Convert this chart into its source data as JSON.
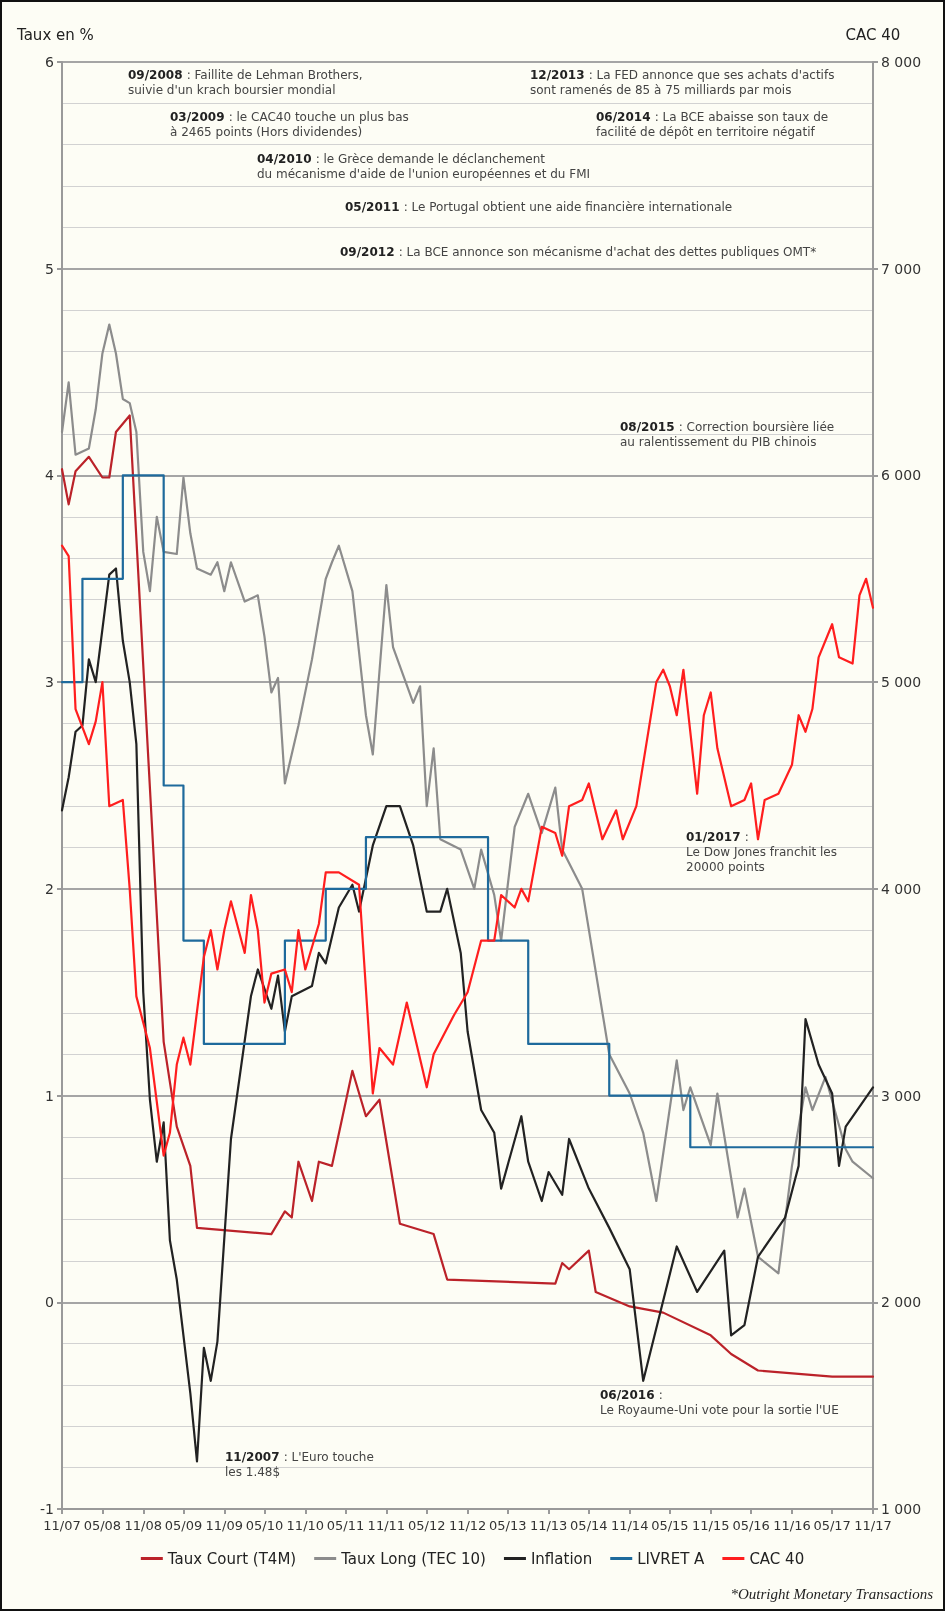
{
  "chart_data": {
    "type": "line",
    "ylabel": "Taux en %",
    "y2label": "CAC 40",
    "legend": "bottom",
    "grid": "y",
    "marker": "none",
    "xlim": [
      "2007-11",
      "2017-11"
    ],
    "xticks": [
      {
        "value": "2007-11",
        "label": "11/07"
      },
      {
        "value": "2008-05",
        "label": "05/08"
      },
      {
        "value": "2008-11",
        "label": "11/08"
      },
      {
        "value": "2009-05",
        "label": "05/09"
      },
      {
        "value": "2009-11",
        "label": "11/09"
      },
      {
        "value": "2010-05",
        "label": "05/10"
      },
      {
        "value": "2010-11",
        "label": "11/10"
      },
      {
        "value": "2011-05",
        "label": "05/11"
      },
      {
        "value": "2011-11",
        "label": "11/11"
      },
      {
        "value": "2012-05",
        "label": "05/12"
      },
      {
        "value": "2012-11",
        "label": "11/12"
      },
      {
        "value": "2013-05",
        "label": "05/13"
      },
      {
        "value": "2013-11",
        "label": "11/13"
      },
      {
        "value": "2014-05",
        "label": "05/14"
      },
      {
        "value": "2014-11",
        "label": "11/14"
      },
      {
        "value": "2015-05",
        "label": "05/15"
      },
      {
        "value": "2015-11",
        "label": "11/15"
      },
      {
        "value": "2016-05",
        "label": "05/16"
      },
      {
        "value": "2016-11",
        "label": "11/16"
      },
      {
        "value": "2017-05",
        "label": "05/17"
      },
      {
        "value": "2017-11",
        "label": "11/17"
      }
    ],
    "ylim": [
      -1,
      6
    ],
    "yticks": [
      -1,
      0,
      1,
      2,
      3,
      4,
      5,
      6
    ],
    "y2lim": [
      1000,
      8000
    ],
    "y2ticks": [
      {
        "value": 1000,
        "label": "1 000"
      },
      {
        "value": 2000,
        "label": "2 000"
      },
      {
        "value": 3000,
        "label": "3 000"
      },
      {
        "value": 4000,
        "label": "4 000"
      },
      {
        "value": 5000,
        "label": "5 000"
      },
      {
        "value": 6000,
        "label": "6 000"
      },
      {
        "value": 7000,
        "label": "7 000"
      },
      {
        "value": 8000,
        "label": "8 000"
      }
    ],
    "series": [
      {
        "name": "Taux Court (T4M)",
        "color": "#bb2229",
        "x": [
          "2007-11",
          "2007-12",
          "2008-01",
          "2008-03",
          "2008-05",
          "2008-06",
          "2008-07",
          "2008-09",
          "2009-02",
          "2009-04",
          "2009-06",
          "2009-07",
          "2010-06",
          "2010-08",
          "2010-09",
          "2010-10",
          "2010-12",
          "2011-01",
          "2011-03",
          "2011-06",
          "2011-08",
          "2011-10",
          "2012-01",
          "2012-06",
          "2012-08",
          "2013-12",
          "2014-01",
          "2014-02",
          "2014-05",
          "2014-06",
          "2014-11",
          "2015-04",
          "2015-11",
          "2016-02",
          "2016-06",
          "2017-05",
          "2017-11"
        ],
        "values": [
          4.03,
          3.86,
          4.02,
          4.09,
          3.99,
          3.99,
          4.21,
          4.29,
          1.26,
          0.85,
          0.66,
          0.36,
          0.33,
          0.44,
          0.41,
          0.68,
          0.49,
          0.68,
          0.66,
          1.12,
          0.9,
          0.98,
          0.38,
          0.33,
          0.11,
          0.09,
          0.19,
          0.16,
          0.25,
          0.05,
          -0.02,
          -0.05,
          -0.16,
          -0.25,
          -0.33,
          -0.36,
          -0.36
        ]
      },
      {
        "name": "Taux Long (TEC 10)",
        "color": "#8c8c8c",
        "x": [
          "2007-11",
          "2007-12",
          "2008-01",
          "2008-03",
          "2008-04",
          "2008-05",
          "2008-06",
          "2008-07",
          "2008-08",
          "2008-09",
          "2008-10",
          "2008-11",
          "2008-12",
          "2009-01",
          "2009-02",
          "2009-04",
          "2009-05",
          "2009-06",
          "2009-07",
          "2009-09",
          "2009-10",
          "2009-11",
          "2009-12",
          "2010-02",
          "2010-04",
          "2010-05",
          "2010-06",
          "2010-07",
          "2010-08",
          "2010-10",
          "2010-12",
          "2011-02",
          "2011-03",
          "2011-04",
          "2011-06",
          "2011-08",
          "2011-09",
          "2011-11",
          "2011-12",
          "2012-03",
          "2012-04",
          "2012-05",
          "2012-06",
          "2012-07",
          "2012-10",
          "2012-12",
          "2013-01",
          "2013-03",
          "2013-04",
          "2013-06",
          "2013-08",
          "2013-10",
          "2013-12",
          "2014-01",
          "2014-04",
          "2014-08",
          "2014-11",
          "2015-01",
          "2015-03",
          "2015-06",
          "2015-07",
          "2015-08",
          "2015-11",
          "2015-12",
          "2016-03",
          "2016-04",
          "2016-06",
          "2016-09",
          "2016-11",
          "2017-01",
          "2017-02",
          "2017-04",
          "2017-07",
          "2017-08",
          "2017-11"
        ],
        "values": [
          4.21,
          4.45,
          4.1,
          4.13,
          4.32,
          4.59,
          4.73,
          4.59,
          4.37,
          4.35,
          4.21,
          3.63,
          3.44,
          3.8,
          3.63,
          3.62,
          3.99,
          3.72,
          3.55,
          3.52,
          3.58,
          3.44,
          3.58,
          3.39,
          3.42,
          3.22,
          2.95,
          3.02,
          2.51,
          2.79,
          3.11,
          3.5,
          3.58,
          3.66,
          3.44,
          2.84,
          2.65,
          3.47,
          3.17,
          2.9,
          2.98,
          2.4,
          2.68,
          2.24,
          2.19,
          2.0,
          2.19,
          1.97,
          1.75,
          2.3,
          2.46,
          2.27,
          2.49,
          2.19,
          2.0,
          1.2,
          1.01,
          0.82,
          0.49,
          1.17,
          0.93,
          1.04,
          0.76,
          1.01,
          0.41,
          0.55,
          0.22,
          0.14,
          0.66,
          1.04,
          0.93,
          1.09,
          0.74,
          0.68,
          0.6
        ]
      },
      {
        "name": "Inflation",
        "color": "#222222",
        "x": [
          "2007-11",
          "2007-12",
          "2008-01",
          "2008-02",
          "2008-03",
          "2008-04",
          "2008-06",
          "2008-07",
          "2008-08",
          "2008-09",
          "2008-10",
          "2008-11",
          "2008-12",
          "2009-01",
          "2009-02",
          "2009-03",
          "2009-04",
          "2009-06",
          "2009-07",
          "2009-08",
          "2009-09",
          "2009-10",
          "2009-12",
          "2010-03",
          "2010-04",
          "2010-06",
          "2010-07",
          "2010-08",
          "2010-09",
          "2010-12",
          "2011-01",
          "2011-02",
          "2011-04",
          "2011-06",
          "2011-07",
          "2011-09",
          "2011-11",
          "2012-01",
          "2012-03",
          "2012-05",
          "2012-07",
          "2012-08",
          "2012-10",
          "2012-11",
          "2013-01",
          "2013-03",
          "2013-04",
          "2013-07",
          "2013-08",
          "2013-10",
          "2013-11",
          "2014-01",
          "2014-02",
          "2014-05",
          "2014-08",
          "2014-11",
          "2015-01",
          "2015-06",
          "2015-09",
          "2016-01",
          "2016-02",
          "2016-04",
          "2016-06",
          "2016-10",
          "2016-12",
          "2017-01",
          "2017-03",
          "2017-05",
          "2017-06",
          "2017-07",
          "2017-11"
        ],
        "values": [
          2.38,
          2.54,
          2.76,
          2.79,
          3.11,
          3.0,
          3.52,
          3.55,
          3.2,
          3.0,
          2.7,
          1.5,
          0.98,
          0.68,
          0.87,
          0.3,
          0.11,
          -0.44,
          -0.77,
          -0.22,
          -0.38,
          -0.19,
          0.79,
          1.48,
          1.61,
          1.42,
          1.58,
          1.31,
          1.48,
          1.53,
          1.69,
          1.64,
          1.91,
          2.02,
          1.89,
          2.21,
          2.4,
          2.4,
          2.21,
          1.89,
          1.89,
          2.0,
          1.69,
          1.31,
          0.93,
          0.82,
          0.55,
          0.9,
          0.68,
          0.49,
          0.63,
          0.52,
          0.79,
          0.55,
          0.36,
          0.16,
          -0.38,
          0.27,
          0.05,
          0.25,
          -0.16,
          -0.11,
          0.22,
          0.41,
          0.66,
          1.37,
          1.15,
          1.01,
          0.66,
          0.85,
          1.04
        ]
      },
      {
        "name": "LIVRET A",
        "color": "#1e6a9c",
        "type": "step",
        "x": [
          "2007-11",
          "2008-02",
          "2008-08",
          "2009-02",
          "2009-05",
          "2009-08",
          "2010-08",
          "2011-02",
          "2011-08",
          "2013-02",
          "2013-08",
          "2014-08",
          "2015-08",
          "2017-11"
        ],
        "values": [
          3.0,
          3.5,
          4.0,
          2.5,
          1.75,
          1.25,
          1.75,
          2.0,
          2.25,
          1.75,
          1.25,
          1.0,
          0.75,
          0.75
        ]
      },
      {
        "name": "CAC 40",
        "color": "#ff1e1e",
        "axis": "y2",
        "x": [
          "2007-11",
          "2007-12",
          "2008-01",
          "2008-03",
          "2008-04",
          "2008-05",
          "2008-06",
          "2008-08",
          "2008-09",
          "2008-10",
          "2008-12",
          "2009-02",
          "2009-03",
          "2009-04",
          "2009-05",
          "2009-06",
          "2009-08",
          "2009-09",
          "2009-10",
          "2009-11",
          "2009-12",
          "2010-02",
          "2010-03",
          "2010-04",
          "2010-05",
          "2010-06",
          "2010-08",
          "2010-09",
          "2010-10",
          "2010-11",
          "2011-01",
          "2011-02",
          "2011-04",
          "2011-07",
          "2011-09",
          "2011-10",
          "2011-12",
          "2012-02",
          "2012-05",
          "2012-06",
          "2012-09",
          "2012-11",
          "2013-01",
          "2013-03",
          "2013-04",
          "2013-06",
          "2013-07",
          "2013-08",
          "2013-10",
          "2013-12",
          "2014-01",
          "2014-02",
          "2014-04",
          "2014-05",
          "2014-07",
          "2014-09",
          "2014-10",
          "2014-12",
          "2015-03",
          "2015-04",
          "2015-05",
          "2015-06",
          "2015-07",
          "2015-09",
          "2015-10",
          "2015-11",
          "2015-12",
          "2016-02",
          "2016-04",
          "2016-05",
          "2016-06",
          "2016-07",
          "2016-09",
          "2016-11",
          "2016-12",
          "2017-01",
          "2017-02",
          "2017-03",
          "2017-05",
          "2017-06",
          "2017-08",
          "2017-09",
          "2017-10",
          "2017-11"
        ],
        "values": [
          5660,
          5610,
          4870,
          4700,
          4810,
          5000,
          4400,
          4430,
          4000,
          3480,
          3230,
          2710,
          2820,
          3150,
          3280,
          3150,
          3670,
          3800,
          3610,
          3800,
          3940,
          3690,
          3970,
          3800,
          3450,
          3590,
          3610,
          3500,
          3800,
          3610,
          3830,
          4080,
          4080,
          4020,
          3010,
          3230,
          3150,
          3450,
          3040,
          3200,
          3390,
          3500,
          3750,
          3750,
          3970,
          3910,
          4000,
          3940,
          4300,
          4270,
          4160,
          4400,
          4430,
          4510,
          4240,
          4380,
          4240,
          4400,
          5000,
          5060,
          4980,
          4840,
          5060,
          4460,
          4840,
          4950,
          4680,
          4400,
          4430,
          4510,
          4240,
          4430,
          4460,
          4600,
          4840,
          4760,
          4870,
          5120,
          5280,
          5120,
          5090,
          5420,
          5500,
          5360
        ]
      }
    ],
    "annotations": [
      "09/2008 : Faillite de Lehman Brothers,\nsuivie d'un krach boursier mondial",
      "03/2009 : le CAC40 touche un plus bas\nà 2465 points (Hors dividendes)",
      "04/2010 : le Grèce demande le déclanchement\ndu mécanisme d'aide de l'union européennes et du FMI",
      "05/2011 : Le Portugal obtient une aide financière internationale",
      "09/2012 : La BCE annonce son mécanisme d'achat des dettes publiques OMT*",
      "12/2013 : La FED annonce que ses achats d'actifs\nsont ramenés de 85 à 75 milliards par mois",
      "06/2014 : La BCE abaisse son taux de\nfacilité de dépôt en territoire négatif",
      "08/2015 : Correction boursière liée\nau ralentissement du PIB chinois",
      "01/2017 :\nLe Dow Jones franchit les\n20000 points",
      "06/2016 :\nLe Royaume-Uni vote pour la sortie l'UE",
      "11/2007 : L'Euro touche\nles 1.48$",
      "*Outright Monetary Transactions"
    ]
  }
}
